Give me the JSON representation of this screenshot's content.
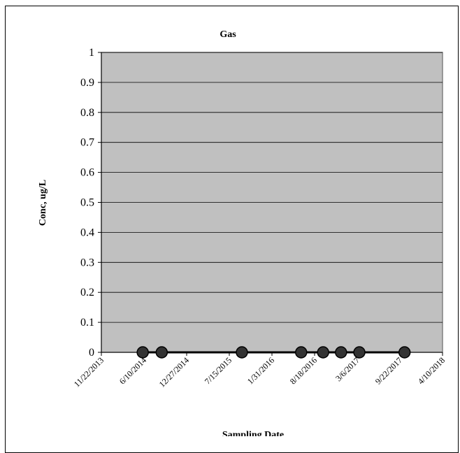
{
  "chart_data": {
    "type": "line",
    "title": "Gas",
    "xlabel": "Sampling Date",
    "ylabel": "Conc, ug/L",
    "ylim": [
      0,
      1
    ],
    "yticks": [
      "0",
      "0.1",
      "0.2",
      "0.3",
      "0.4",
      "0.5",
      "0.6",
      "0.7",
      "0.8",
      "0.9",
      "1"
    ],
    "xlim": [
      "11/22/2013",
      "4/10/2018"
    ],
    "xticks": [
      "11/22/2013",
      "6/10/2014",
      "12/27/2014",
      "7/15/2015",
      "1/31/2016",
      "8/18/2016",
      "3/6/2017",
      "9/22/2017",
      "4/10/2018"
    ],
    "grid": true,
    "plot_background": "#c0c0c0",
    "series": [
      {
        "marker_color": "#000000",
        "line_color": "#000000",
        "x": [
          "6/4/2014",
          "9/1/2014",
          "9/12/2015",
          "6/16/2016",
          "9/27/2016",
          "12/20/2016",
          "3/16/2017",
          "10/14/2017"
        ],
        "values": [
          0,
          0,
          0,
          0,
          0,
          0,
          0,
          0
        ]
      }
    ]
  }
}
